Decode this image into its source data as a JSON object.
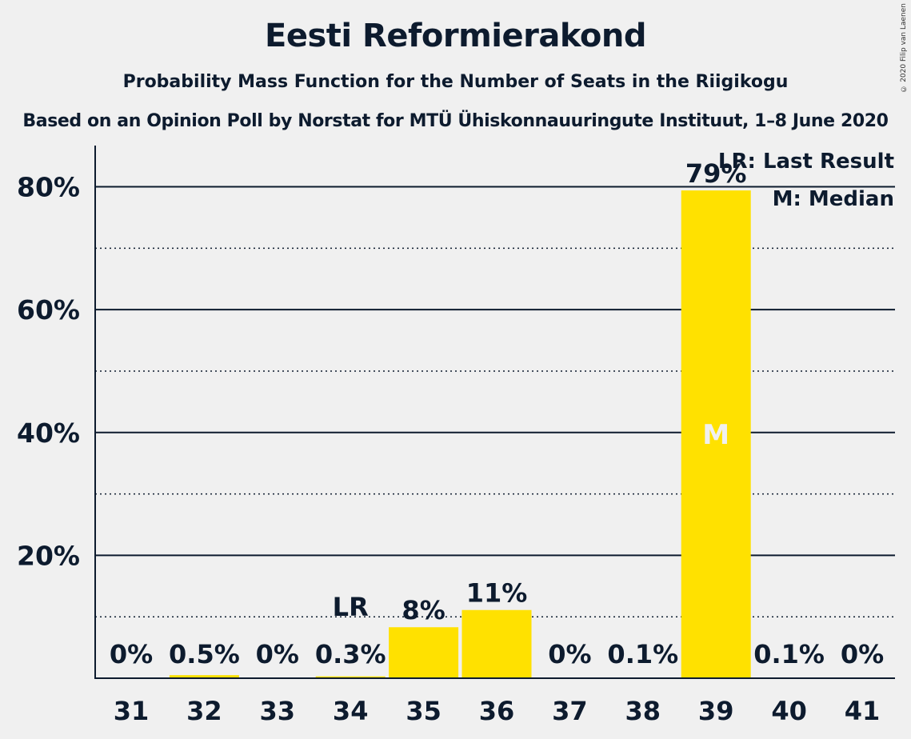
{
  "header": {
    "title": "Eesti Reformierakond",
    "subtitle": "Probability Mass Function for the Number of Seats in the Riigikogu",
    "subtitle2": "Based on an Opinion Poll by Norstat for MTÜ Ühiskonnauuringute Instituut, 1–8 June 2020",
    "copyright": "© 2020 Filip van Laenen"
  },
  "chart_data": {
    "type": "bar",
    "categories": [
      "31",
      "32",
      "33",
      "34",
      "35",
      "36",
      "37",
      "38",
      "39",
      "40",
      "41"
    ],
    "values": [
      0,
      0.5,
      0,
      0.3,
      8.3,
      11.1,
      0,
      0.1,
      79.4,
      0.1,
      0
    ],
    "data_labels": [
      "0%",
      "0.5%",
      "0%",
      "0.3%",
      "8%",
      "11%",
      "0%",
      "0.1%",
      "79%",
      "0.1%",
      "0%"
    ],
    "yticks": [
      20,
      40,
      60,
      80
    ],
    "ytick_labels": [
      "20%",
      "40%",
      "60%",
      "80%"
    ],
    "minor_gridlines": [
      10,
      30,
      50,
      70
    ],
    "ylim": [
      0,
      86
    ],
    "bar_color": "#ffe100",
    "last_result_category": "34",
    "last_result_marker": "LR",
    "median_category": "39",
    "median_marker": "M",
    "legend": {
      "position": "top-right",
      "lines": [
        "LR: Last Result",
        "M: Median"
      ]
    }
  }
}
